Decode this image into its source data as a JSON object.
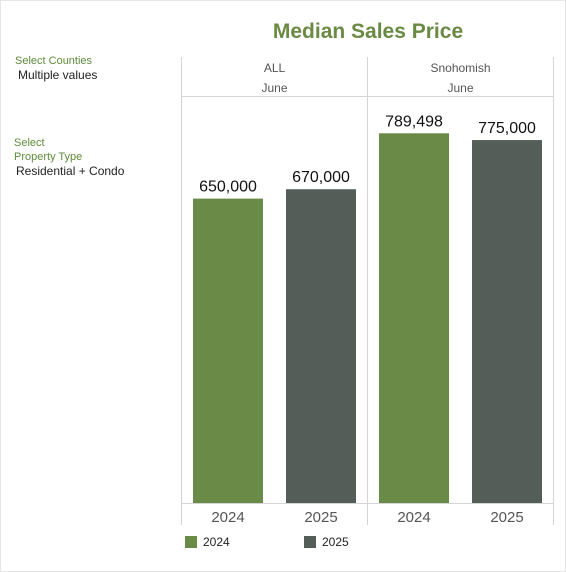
{
  "title": "Median Sales Price",
  "filters": {
    "counties": {
      "label": "Select Counties",
      "value": "Multiple values"
    },
    "property_type": {
      "label_line1": "Select",
      "label_line2": "Property Type",
      "value": "Residential + Condo"
    }
  },
  "legend": [
    {
      "label": "2024",
      "color": "#6a8a48"
    },
    {
      "label": "2025",
      "color": "#545d58"
    }
  ],
  "chart_data": {
    "type": "bar",
    "title": "Median Sales Price",
    "panels": [
      {
        "name": "ALL",
        "month": "June",
        "categories": [
          "2024",
          "2025"
        ],
        "values": [
          650000,
          670000
        ],
        "labels": [
          "650,000",
          "670,000"
        ]
      },
      {
        "name": "Snohomish",
        "month": "June",
        "categories": [
          "2024",
          "2025"
        ],
        "values": [
          789498,
          775000
        ],
        "labels": [
          "789,498",
          "775,000"
        ]
      }
    ],
    "colors": [
      "#6a8a48",
      "#545d58"
    ],
    "ylim": [
      0,
      800000
    ],
    "grid": false,
    "legend_position": "bottom"
  }
}
